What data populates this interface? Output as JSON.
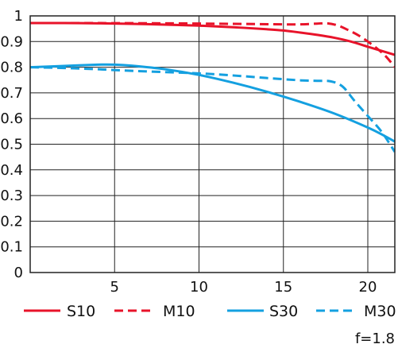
{
  "chart_data": {
    "type": "line",
    "title": "",
    "xlabel": "",
    "ylabel": "",
    "xlim": [
      0,
      21.6
    ],
    "ylim": [
      0,
      1
    ],
    "x_ticks": [
      5,
      10,
      15,
      20
    ],
    "x_tick_labels": [
      "5",
      "10",
      "15",
      "20"
    ],
    "y_ticks": [
      0,
      0.1,
      0.2,
      0.3,
      0.4,
      0.5,
      0.6,
      0.7,
      0.8,
      0.9,
      1
    ],
    "y_tick_labels": [
      "0",
      "0.1",
      "0.2",
      "0.3",
      "0.4",
      "0.5",
      "0.6",
      "0.7",
      "0.8",
      "0.9",
      "1"
    ],
    "grid": true,
    "legend_position": "bottom",
    "note": "f=1.8",
    "series": [
      {
        "name": "S10",
        "color": "#e8132a",
        "dash": "solid",
        "points": [
          [
            0,
            0.972
          ],
          [
            2,
            0.972
          ],
          [
            4,
            0.971
          ],
          [
            6,
            0.969
          ],
          [
            8,
            0.966
          ],
          [
            10,
            0.962
          ],
          [
            12,
            0.956
          ],
          [
            14,
            0.948
          ],
          [
            15,
            0.943
          ],
          [
            16,
            0.935
          ],
          [
            17,
            0.926
          ],
          [
            18,
            0.915
          ],
          [
            19,
            0.9
          ],
          [
            20,
            0.88
          ],
          [
            21,
            0.86
          ],
          [
            21.6,
            0.848
          ]
        ]
      },
      {
        "name": "M10",
        "color": "#e8132a",
        "dash": "dashed",
        "points": [
          [
            0,
            0.972
          ],
          [
            4,
            0.972
          ],
          [
            8,
            0.971
          ],
          [
            12,
            0.969
          ],
          [
            15,
            0.967
          ],
          [
            16,
            0.967
          ],
          [
            17,
            0.97
          ],
          [
            17.6,
            0.971
          ],
          [
            18.2,
            0.963
          ],
          [
            18.8,
            0.946
          ],
          [
            19.4,
            0.926
          ],
          [
            20,
            0.9
          ],
          [
            20.6,
            0.87
          ],
          [
            21.1,
            0.84
          ],
          [
            21.6,
            0.8
          ]
        ]
      },
      {
        "name": "S30",
        "color": "#14a0e0",
        "dash": "solid",
        "points": [
          [
            0,
            0.8
          ],
          [
            2,
            0.805
          ],
          [
            4,
            0.81
          ],
          [
            5,
            0.81
          ],
          [
            6,
            0.806
          ],
          [
            8,
            0.792
          ],
          [
            10,
            0.77
          ],
          [
            12,
            0.74
          ],
          [
            14,
            0.705
          ],
          [
            16,
            0.665
          ],
          [
            18,
            0.62
          ],
          [
            20,
            0.565
          ],
          [
            21,
            0.532
          ],
          [
            21.6,
            0.51
          ]
        ]
      },
      {
        "name": "M30",
        "color": "#14a0e0",
        "dash": "dashed",
        "points": [
          [
            0,
            0.8
          ],
          [
            2,
            0.797
          ],
          [
            4,
            0.792
          ],
          [
            6,
            0.786
          ],
          [
            8,
            0.781
          ],
          [
            10,
            0.776
          ],
          [
            12,
            0.768
          ],
          [
            14,
            0.758
          ],
          [
            16,
            0.749
          ],
          [
            17,
            0.747
          ],
          [
            17.8,
            0.745
          ],
          [
            18.5,
            0.725
          ],
          [
            19.2,
            0.67
          ],
          [
            20,
            0.61
          ],
          [
            20.8,
            0.55
          ],
          [
            21.6,
            0.47
          ]
        ]
      }
    ]
  }
}
